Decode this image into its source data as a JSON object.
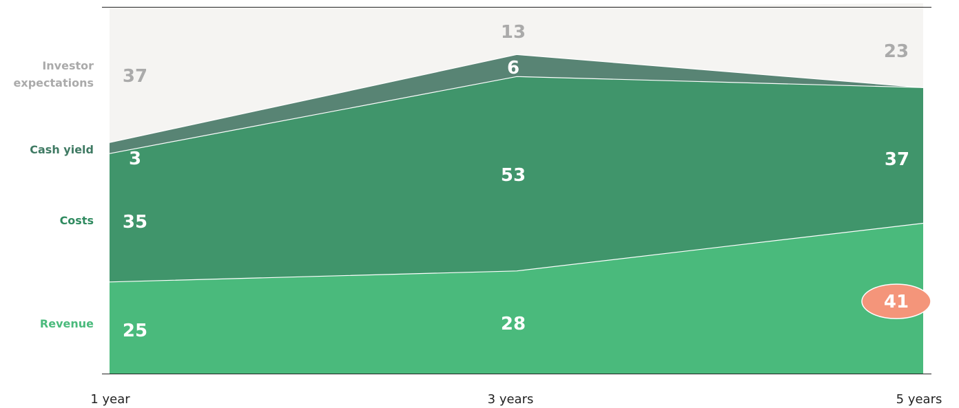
{
  "chart_data": {
    "type": "area",
    "stacked": true,
    "x": [
      "1 year",
      "3 years",
      "5 years"
    ],
    "ylim": [
      0,
      100
    ],
    "series": [
      {
        "name": "Revenue",
        "values": [
          25,
          28,
          41
        ],
        "color": "#4aba7c",
        "label_color": "#4aba7c"
      },
      {
        "name": "Costs",
        "values": [
          35,
          53,
          37
        ],
        "color": "#40956b",
        "label_color": "#2f8a5f"
      },
      {
        "name": "Cash yield",
        "values": [
          3,
          6,
          0
        ],
        "color": "#588474",
        "label_color": "#3f7a63"
      },
      {
        "name": "Investor expectations",
        "values": [
          37,
          13,
          23
        ],
        "color": "#f5f4f2",
        "label_color": "#aaaaaa"
      }
    ],
    "data_labels": [
      {
        "series": "Revenue",
        "point": 0,
        "text": "25"
      },
      {
        "series": "Revenue",
        "point": 1,
        "text": "28"
      },
      {
        "series": "Revenue",
        "point": 2,
        "text": "41",
        "highlight": true
      },
      {
        "series": "Costs",
        "point": 0,
        "text": "35"
      },
      {
        "series": "Costs",
        "point": 1,
        "text": "53"
      },
      {
        "series": "Costs",
        "point": 2,
        "text": "37"
      },
      {
        "series": "Cash yield",
        "point": 0,
        "text": "3"
      },
      {
        "series": "Cash yield",
        "point": 1,
        "text": "6"
      },
      {
        "series": "Investor expectations",
        "point": 0,
        "text": "37"
      },
      {
        "series": "Investor expectations",
        "point": 1,
        "text": "13"
      },
      {
        "series": "Investor expectations",
        "point": 2,
        "text": "23"
      }
    ],
    "highlight_color": "#f4957a",
    "legend": "left"
  }
}
